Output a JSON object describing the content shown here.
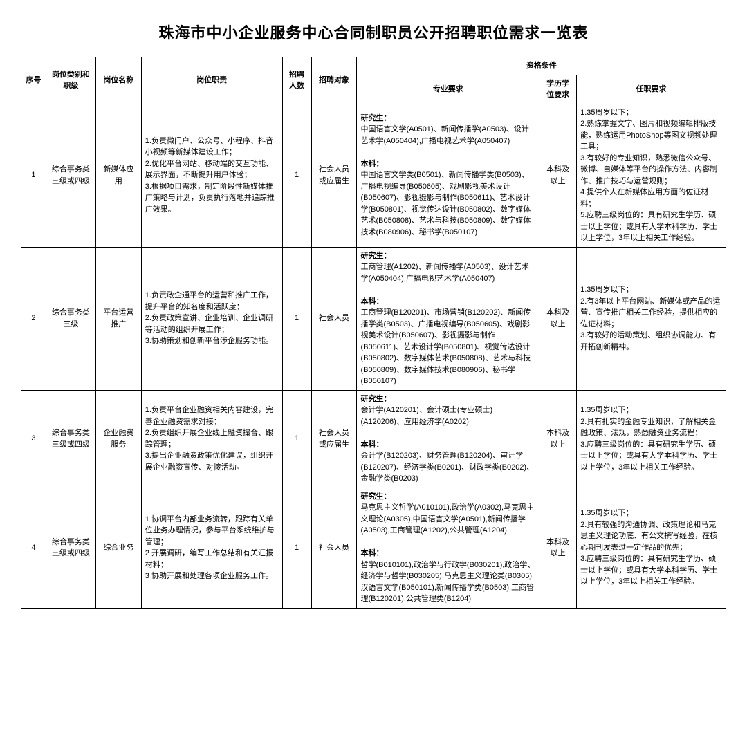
{
  "title": "珠海市中小企业服务中心合同制职员公开招聘职位需求一览表",
  "headers": {
    "seq": "序号",
    "category": "岗位类别和职级",
    "name": "岗位名称",
    "duty": "岗位职责",
    "num": "招聘人数",
    "object": "招聘对象",
    "qual": "资格条件",
    "major": "专业要求",
    "edu": "学历学位要求",
    "req": "任职要求"
  },
  "labels": {
    "grad": "研究生：",
    "undergrad": "本科："
  },
  "rows": [
    {
      "seq": "1",
      "category": "综合事务类三级或四级",
      "name": "新媒体应用",
      "duty": "1.负责微门户、公众号、小程序、抖音小视频等新媒体建设工作；\n2.优化平台网站、移动端的交互功能、展示界面，不断提升用户体验；\n3.根据项目需求，制定阶段性新媒体推广策略与计划，负责执行落地并追踪推广效果。",
      "num": "1",
      "object": "社会人员或应届生",
      "major_grad": "中国语言文学(A0501)、新闻传播学(A0503)、设计艺术学(A050404),广播电视艺术学(A050407)",
      "major_undergrad": "中国语言文学类(B0501)、新闻传播学类(B0503)、广播电视编导(B050605)、戏剧影视美术设计(B050607)、影视摄影与制作(B050611)、艺术设计学(B050801)、视觉传达设计(B050802)、数字媒体艺术(B050808)、艺术与科技(B050809)、数字媒体技术(B080906)、秘书学(B050107)",
      "edu": "本科及以上",
      "req": "1.35周岁以下；\n2.熟练掌握文字、图片和视频编辑排版技能，熟练运用PhotoShop等图文视频处理工具；\n3.有较好的专业知识，熟悉微信公众号、微博、自媒体等平台的操作方法、内容制作、推广技巧与运营规则；\n4.提供个人在新媒体应用方面的佐证材料；\n5.应聘三级岗位的：具有研究生学历、硕士以上学位；或具有大学本科学历、学士以上学位，3年以上相关工作经验。"
    },
    {
      "seq": "2",
      "category": "综合事务类三级",
      "name": "平台运营推广",
      "duty": "1.负责政企通平台的运营和推广工作，提升平台的知名度和活跃度；\n2.负责政策宣讲、企业培训、企业调研等活动的组织开展工作；\n3.协助策划和创新平台涉企服务功能。",
      "num": "1",
      "object": "社会人员",
      "major_grad": "工商管理(A1202)、新闻传播学(A0503)、设计艺术学(A050404),广播电视艺术学(A050407)",
      "major_undergrad": "工商管理(B120201)、市场营销(B120202)、新闻传播学类(B0503)、广播电视编导(B050605)、戏剧影视美术设计(B050607)、影视摄影与制作(B050611)、艺术设计学(B050801)、视觉传达设计(B050802)、数字媒体艺术(B050808)、艺术与科技(B050809)、数字媒体技术(B080906)、秘书学(B050107)",
      "edu": "本科及以上",
      "req": "1.35周岁以下；\n2.有3年以上平台网站、新媒体或产品的运营、宣传推广相关工作经验，提供相应的佐证材料；\n3.有较好的活动策划、组织协调能力、有开拓创新精神。"
    },
    {
      "seq": "3",
      "category": "综合事务类三级或四级",
      "name": "企业融资服务",
      "duty": "1.负责平台企业融资相关内容建设，完善企业融资需求对接；\n2.负责组织开展企业线上融资撮合、跟踪管理；\n3.提出企业融资政策优化建议，组织开展企业融资宣传、对接活动。",
      "num": "1",
      "object": "社会人员或应届生",
      "major_grad": "会计学(A120201)、会计硕士(专业硕士)(A120206)、应用经济学(A0202)",
      "major_undergrad": "会计学(B120203)、财务管理(B120204)、审计学(B120207)、经济学类(B0201)、财政学类(B0202)、金融学类(B0203)",
      "edu": "本科及以上",
      "req": "1.35周岁以下；\n2.具有扎实的金融专业知识，了解相关金融政策、法规，熟悉融资业务流程；\n3.应聘三级岗位的：具有研究生学历、硕士以上学位；或具有大学本科学历、学士以上学位，3年以上相关工作经验。"
    },
    {
      "seq": "4",
      "category": "综合事务类三级或四级",
      "name": "综合业务",
      "duty": "1 协调平台内部业务流转，跟踪有关单位业务办理情况，参与平台系统维护与管理；\n2 开展调研，编写工作总结和有关汇报材料；\n3 协助开展和处理各项企业服务工作。",
      "num": "1",
      "object": "社会人员",
      "major_grad": "马克思主义哲学(A010101),政治学(A0302),马克思主义理论(A0305),中国语言文学(A0501),新闻传播学(A0503),工商管理(A1202),公共管理(A1204)",
      "major_undergrad": "哲学(B010101),政治学与行政学(B030201),政治学、经济学与哲学(B030205),马克思主义理论类(B0305),汉语言文学(B050101),新闻传播学类(B0503),工商管理(B120201),公共管理类(B1204)",
      "edu": "本科及以上",
      "req": "1.35周岁以下；\n2.具有较强的沟通协调、政策理论和马克思主义理论功底、有公文撰写经验，在核心期刊发表过一定作品的优先；\n3.应聘三级岗位的：具有研究生学历、硕士以上学位；或具有大学本科学历、学士以上学位，3年以上相关工作经验。"
    }
  ]
}
